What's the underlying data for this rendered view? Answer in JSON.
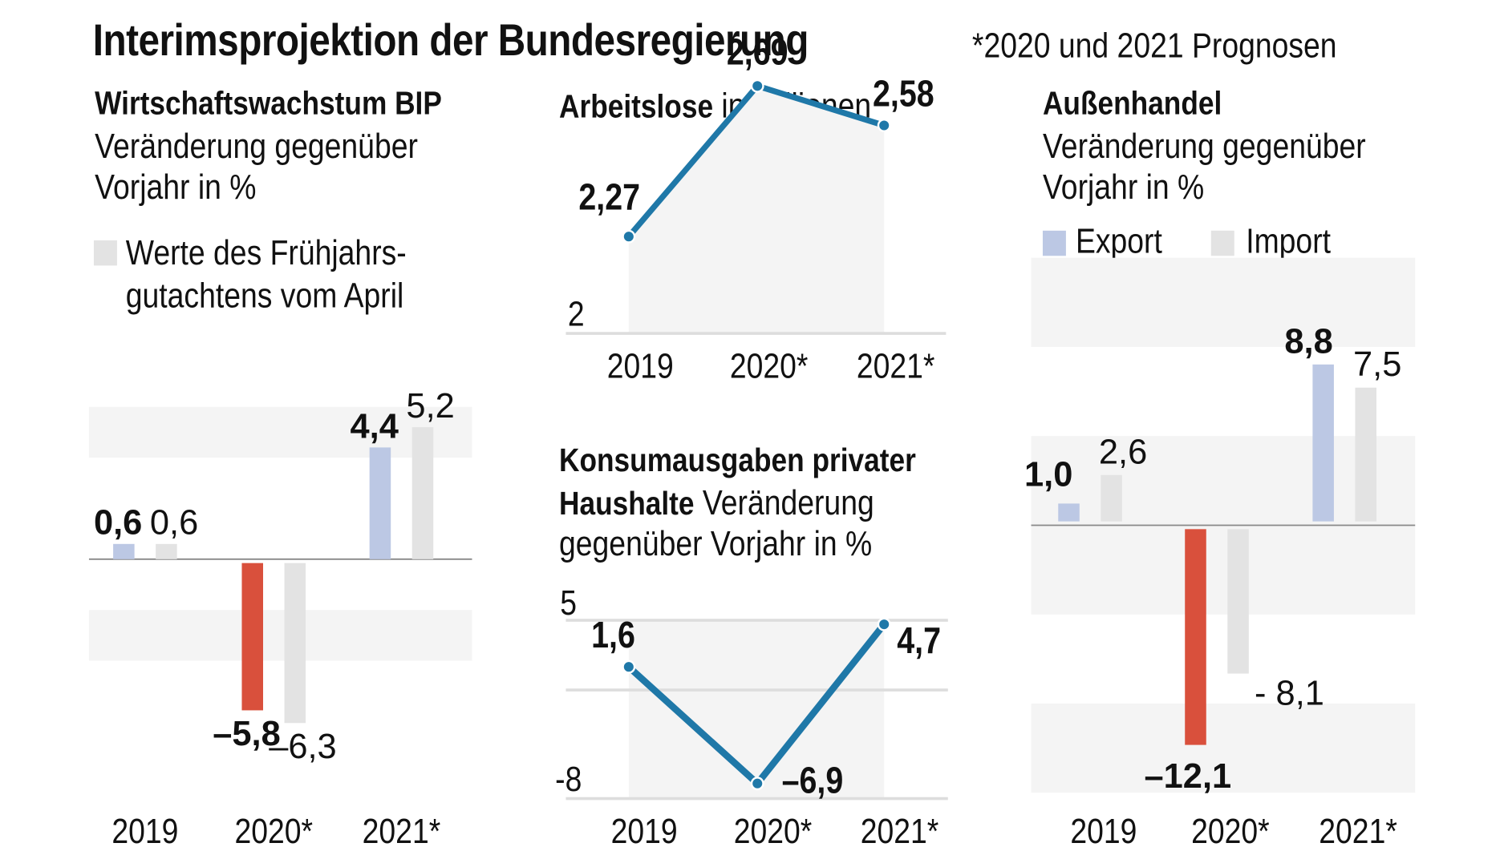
{
  "title": "Interimsprojektion der Bundesregierung",
  "footnote": "*2020 und 2021 Prognosen",
  "colors": {
    "primary_bar": "#bcc8e4",
    "negative_bar": "#d9503c",
    "comparison_bar": "#e3e3e3",
    "band": "#f4f4f4",
    "line": "#1f78a8",
    "zero_line": "#888888"
  },
  "panels": {
    "gdp": {
      "title_bold": "Wirtschaftswachstum BIP",
      "subtitle_line1": "Veränderung gegenüber",
      "subtitle_line2": "Vorjahr in %",
      "legend_line1": "Werte des Frühjahrs-",
      "legend_line2": "gutachtens vom April"
    },
    "unemployment": {
      "title_bold": "Arbeitslose",
      "title_regular": " in Millionen"
    },
    "consumption": {
      "title_line1": "Konsumausgaben privater",
      "title_line2_bold": "Haushalte",
      "title_line2_regular": " Veränderung",
      "title_line3": "gegenüber Vorjahr in %"
    },
    "trade": {
      "title_bold": "Außenhandel",
      "subtitle_line1": "Veränderung gegenüber",
      "subtitle_line2": "Vorjahr in %",
      "legend": [
        "Export",
        "Import"
      ]
    }
  },
  "chart_data": [
    {
      "id": "gdp",
      "type": "bar",
      "title": "Wirtschaftswachstum BIP",
      "subtitle": "Veränderung gegenüber Vorjahr in %",
      "categories": [
        "2019",
        "2020*",
        "2021*"
      ],
      "series": [
        {
          "name": "Interimsprojektion",
          "values": [
            0.6,
            -5.8,
            4.4
          ],
          "labels": [
            "0,6",
            "–5,8",
            "4,4"
          ]
        },
        {
          "name": "Werte des Frühjahrsgutachtens vom April",
          "values": [
            0.6,
            -6.3,
            5.2
          ],
          "labels": [
            "0,6",
            "–6,3",
            "5,2"
          ]
        }
      ],
      "ylim": [
        -7,
        7
      ],
      "bands": [
        [
          4,
          6
        ],
        [
          -4,
          -2
        ]
      ],
      "grid": false
    },
    {
      "id": "unemployment",
      "type": "line",
      "title": "Arbeitslose in Millionen",
      "categories": [
        "2019",
        "2020*",
        "2021*"
      ],
      "series": [
        {
          "name": "Arbeitslose",
          "values": [
            2.27,
            2.69,
            2.58
          ],
          "labels": [
            "2,27",
            "2,69",
            "2,58"
          ]
        }
      ],
      "ylim": [
        2,
        2.8
      ],
      "yticks": [
        {
          "value": 2,
          "label": "2"
        }
      ],
      "grid": false
    },
    {
      "id": "consumption",
      "type": "line",
      "title": "Konsumausgaben privater Haushalte",
      "subtitle": "Veränderung gegenüber Vorjahr in %",
      "categories": [
        "2019",
        "2020*",
        "2021*"
      ],
      "series": [
        {
          "name": "Konsumausgaben",
          "values": [
            1.6,
            -6.9,
            4.7
          ],
          "labels": [
            "1,6",
            "–6,9",
            "4,7"
          ]
        }
      ],
      "ylim": [
        -8,
        5
      ],
      "yticks": [
        {
          "value": 5,
          "label": "5"
        },
        {
          "value": -8,
          "label": "-8"
        }
      ],
      "gridlines": [
        5,
        0,
        -8
      ],
      "grid": true
    },
    {
      "id": "trade",
      "type": "bar",
      "title": "Außenhandel",
      "subtitle": "Veränderung gegenüber Vorjahr in %",
      "categories": [
        "2019",
        "2020*",
        "2021*"
      ],
      "series": [
        {
          "name": "Export",
          "values": [
            1.0,
            -12.1,
            8.8
          ],
          "labels": [
            "1,0",
            "–12,1",
            "8,8"
          ]
        },
        {
          "name": "Import",
          "values": [
            2.6,
            -8.1,
            7.5
          ],
          "labels": [
            "2,6",
            "- 8,1",
            "7,5"
          ]
        }
      ],
      "ylim": [
        -15,
        15
      ],
      "bands": [
        [
          10,
          15
        ],
        [
          0,
          5
        ],
        [
          -5,
          0
        ],
        [
          -15,
          -10
        ]
      ],
      "legend": "top-left",
      "grid": false
    }
  ]
}
